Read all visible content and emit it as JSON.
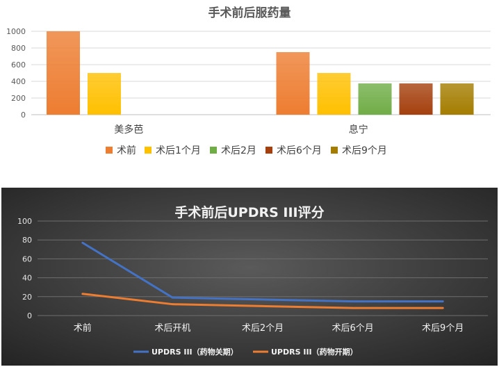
{
  "chart_data": [
    {
      "type": "bar",
      "title": "手术前后服药量",
      "categories": [
        "美多芭",
        "息宁"
      ],
      "series": [
        {
          "name": "术前",
          "values": [
            1000,
            750
          ],
          "color": "#ED7D31"
        },
        {
          "name": "术后1个月",
          "values": [
            500,
            500
          ],
          "color": "#FFC000"
        },
        {
          "name": "术后2月",
          "values": [
            null,
            375
          ],
          "color": "#70AD47"
        },
        {
          "name": "术后6个月",
          "values": [
            null,
            375
          ],
          "color": "#A5400E"
        },
        {
          "name": "术后9个月",
          "values": [
            null,
            375
          ],
          "color": "#A47D00"
        }
      ],
      "ylim": [
        0,
        1000
      ],
      "yticks": [
        "0",
        "200",
        "400",
        "600",
        "800",
        "1000"
      ],
      "grid": true,
      "legend": "bottom"
    },
    {
      "type": "line",
      "title": "手术前后UPDRS III评分",
      "categories": [
        "术前",
        "术后开机",
        "术后2个月",
        "术后6个月",
        "术后9个月"
      ],
      "series": [
        {
          "name": "UPDRS III（药物关期）",
          "values": [
            77,
            19,
            17,
            15,
            15
          ],
          "color": "#4472C4"
        },
        {
          "name": "UPDRS III（药物开期）",
          "values": [
            23,
            12,
            10,
            8,
            8
          ],
          "color": "#ED7D31"
        }
      ],
      "ylim": [
        0,
        100
      ],
      "yticks": [
        "0",
        "20",
        "40",
        "60",
        "80",
        "100"
      ],
      "grid": true,
      "legend": "bottom",
      "background": "dark"
    }
  ]
}
